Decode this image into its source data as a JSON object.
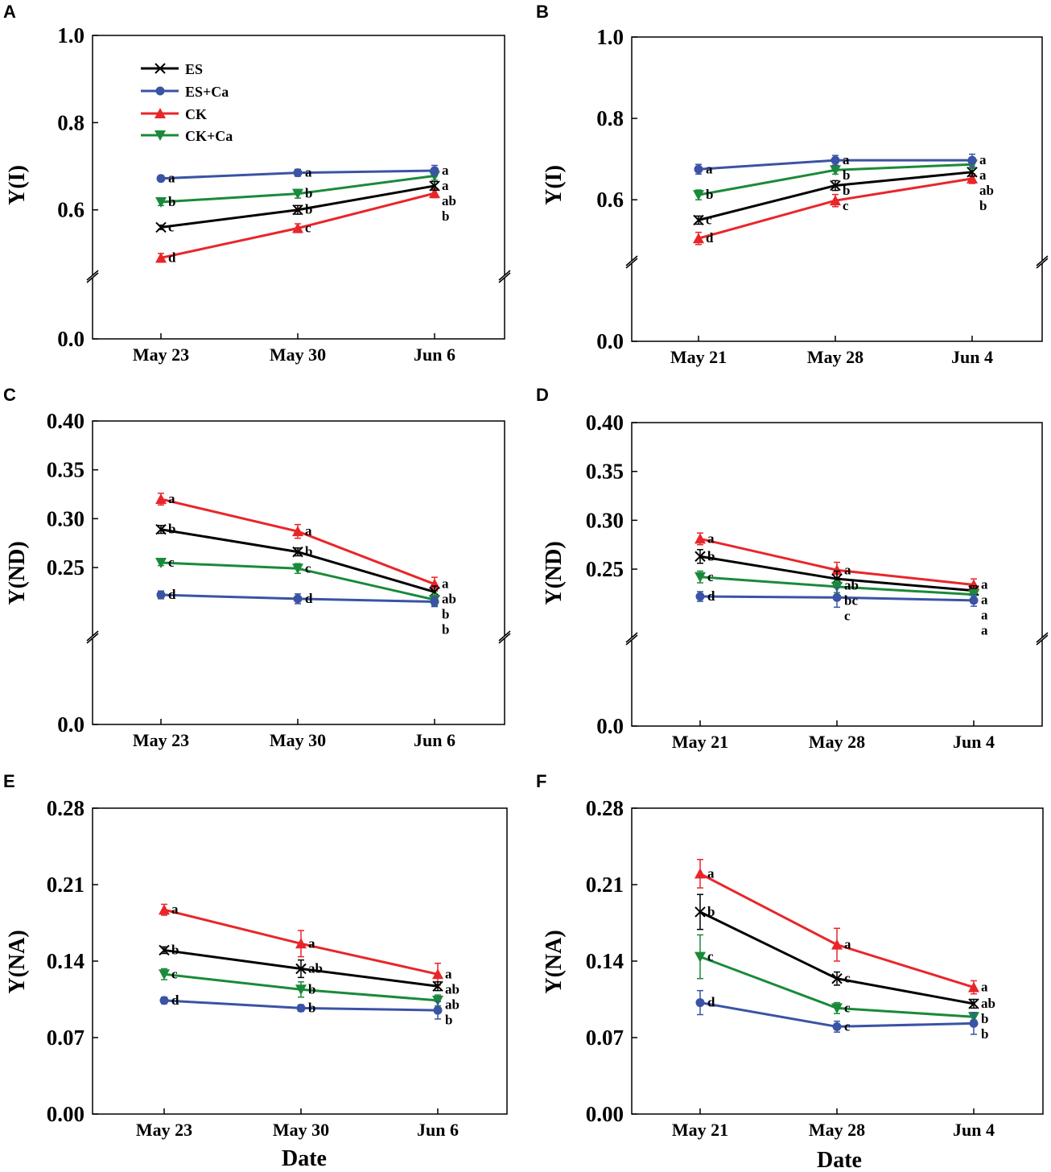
{
  "figure": {
    "xlabel": "Date",
    "legend": {
      "entries": [
        {
          "name": "ES",
          "color": "#000000",
          "marker": "x"
        },
        {
          "name": "ES+Ca",
          "color": "#3a53a4",
          "marker": "circle"
        },
        {
          "name": "CK",
          "color": "#e8262a",
          "marker": "triangle-up"
        },
        {
          "name": "CK+Ca",
          "color": "#1a8a3a",
          "marker": "triangle-down"
        }
      ]
    }
  },
  "chart_data": [
    {
      "panel": "A",
      "type": "line",
      "ylabel": "Y(I)",
      "categories": [
        "May 23",
        "May 30",
        "Jun 6"
      ],
      "ylim": [
        0,
        1.0
      ],
      "axis_break": [
        0.05,
        0.45
      ],
      "yticks": [
        0.0,
        0.6,
        0.8,
        1.0
      ],
      "ytick_labels": [
        "0.0",
        "0.6",
        "0.8",
        "1.0"
      ],
      "series": [
        {
          "name": "ES",
          "values": [
            0.56,
            0.6,
            0.655
          ],
          "errors": [
            0.005,
            0.01,
            0.01
          ],
          "letters": [
            "c",
            "b",
            "ab"
          ]
        },
        {
          "name": "ES+Ca",
          "values": [
            0.672,
            0.685,
            0.69
          ],
          "errors": [
            0.006,
            0.008,
            0.012
          ],
          "letters": [
            "a",
            "a",
            "a"
          ]
        },
        {
          "name": "CK",
          "values": [
            0.49,
            0.558,
            0.638
          ],
          "errors": [
            0.01,
            0.01,
            0.01
          ],
          "letters": [
            "d",
            "c",
            "b"
          ]
        },
        {
          "name": "CK+Ca",
          "values": [
            0.618,
            0.637,
            0.678
          ],
          "errors": [
            0.008,
            0.01,
            0.01
          ],
          "letters": [
            "b",
            "b",
            "a"
          ]
        }
      ]
    },
    {
      "panel": "B",
      "type": "line",
      "ylabel": "Y(I)",
      "categories": [
        "May 21",
        "May 28",
        "Jun 4"
      ],
      "ylim": [
        0,
        1.0
      ],
      "axis_break": [
        0.05,
        0.45
      ],
      "yticks": [
        0.0,
        0.6,
        0.8,
        1.0
      ],
      "ytick_labels": [
        "0.0",
        "0.6",
        "0.8",
        "1.0"
      ],
      "series": [
        {
          "name": "ES",
          "values": [
            0.55,
            0.635,
            0.668
          ],
          "errors": [
            0.01,
            0.012,
            0.01
          ],
          "letters": [
            "c",
            "b",
            "ab"
          ]
        },
        {
          "name": "ES+Ca",
          "values": [
            0.675,
            0.697,
            0.697
          ],
          "errors": [
            0.012,
            0.012,
            0.015
          ],
          "letters": [
            "a",
            "a",
            "a"
          ]
        },
        {
          "name": "CK",
          "values": [
            0.505,
            0.598,
            0.652
          ],
          "errors": [
            0.015,
            0.015,
            0.012
          ],
          "letters": [
            "d",
            "c",
            "b"
          ]
        },
        {
          "name": "CK+Ca",
          "values": [
            0.612,
            0.673,
            0.687
          ],
          "errors": [
            0.012,
            0.01,
            0.01
          ],
          "letters": [
            "b",
            "b",
            "a"
          ]
        }
      ]
    },
    {
      "panel": "C",
      "type": "line",
      "ylabel": "Y(ND)",
      "categories": [
        "May 23",
        "May 30",
        "Jun 6"
      ],
      "ylim": [
        0,
        0.4
      ],
      "axis_break": [
        0.02,
        0.18
      ],
      "yticks": [
        0.0,
        0.25,
        0.3,
        0.35,
        0.4
      ],
      "ytick_labels": [
        "0.0",
        "0.25",
        "0.30",
        "0.35",
        "0.40"
      ],
      "series": [
        {
          "name": "ES",
          "values": [
            0.289,
            0.266,
            0.225
          ],
          "errors": [
            0.004,
            0.004,
            0.006
          ],
          "letters": [
            "b",
            "b",
            "ab"
          ]
        },
        {
          "name": "ES+Ca",
          "values": [
            0.222,
            0.218,
            0.215
          ],
          "errors": [
            0.004,
            0.005,
            0.005
          ],
          "letters": [
            "d",
            "d",
            "b"
          ]
        },
        {
          "name": "CK",
          "values": [
            0.32,
            0.287,
            0.233
          ],
          "errors": [
            0.006,
            0.007,
            0.007
          ],
          "letters": [
            "a",
            "a",
            "a"
          ]
        },
        {
          "name": "CK+Ca",
          "values": [
            0.255,
            0.249,
            0.217
          ],
          "errors": [
            0.003,
            0.005,
            0.006
          ],
          "letters": [
            "c",
            "c",
            "b"
          ]
        }
      ]
    },
    {
      "panel": "D",
      "type": "line",
      "ylabel": "Y(ND)",
      "categories": [
        "May 21",
        "May 28",
        "Jun 4"
      ],
      "ylim": [
        0,
        0.4
      ],
      "axis_break": [
        0.02,
        0.18
      ],
      "yticks": [
        0.0,
        0.25,
        0.3,
        0.35,
        0.4
      ],
      "ytick_labels": [
        "0.0",
        "0.25",
        "0.30",
        "0.35",
        "0.40"
      ],
      "series": [
        {
          "name": "ES",
          "values": [
            0.263,
            0.24,
            0.228
          ],
          "errors": [
            0.007,
            0.008,
            0.005
          ],
          "letters": [
            "b",
            "ab",
            "a"
          ]
        },
        {
          "name": "ES+Ca",
          "values": [
            0.222,
            0.221,
            0.218
          ],
          "errors": [
            0.005,
            0.01,
            0.006
          ],
          "letters": [
            "d",
            "c",
            "a"
          ]
        },
        {
          "name": "CK",
          "values": [
            0.281,
            0.249,
            0.234
          ],
          "errors": [
            0.006,
            0.008,
            0.006
          ],
          "letters": [
            "a",
            "a",
            "a"
          ]
        },
        {
          "name": "CK+Ca",
          "values": [
            0.242,
            0.232,
            0.224
          ],
          "errors": [
            0.006,
            0.006,
            0.005
          ],
          "letters": [
            "c",
            "bc",
            "a"
          ]
        }
      ]
    },
    {
      "panel": "E",
      "type": "line",
      "ylabel": "Y(NA)",
      "categories": [
        "May 23",
        "May 30",
        "Jun 6"
      ],
      "ylim": [
        0,
        0.28
      ],
      "axis_break": null,
      "yticks": [
        0.0,
        0.07,
        0.14,
        0.21,
        0.28
      ],
      "ytick_labels": [
        "0.00",
        "0.07",
        "0.14",
        "0.21",
        "0.28"
      ],
      "series": [
        {
          "name": "ES",
          "values": [
            0.15,
            0.133,
            0.117
          ],
          "errors": [
            0.003,
            0.008,
            0.004
          ],
          "letters": [
            "b",
            "ab",
            "ab"
          ]
        },
        {
          "name": "ES+Ca",
          "values": [
            0.104,
            0.097,
            0.095
          ],
          "errors": [
            0.003,
            0.003,
            0.008
          ],
          "letters": [
            "d",
            "b",
            "b"
          ]
        },
        {
          "name": "CK",
          "values": [
            0.187,
            0.156,
            0.128
          ],
          "errors": [
            0.005,
            0.012,
            0.01
          ],
          "letters": [
            "a",
            "a",
            "a"
          ]
        },
        {
          "name": "CK+Ca",
          "values": [
            0.128,
            0.114,
            0.104
          ],
          "errors": [
            0.005,
            0.007,
            0.005
          ],
          "letters": [
            "c",
            "b",
            "ab"
          ]
        }
      ]
    },
    {
      "panel": "F",
      "type": "line",
      "ylabel": "Y(NA)",
      "categories": [
        "May 21",
        "May 28",
        "Jun 4"
      ],
      "ylim": [
        0,
        0.28
      ],
      "axis_break": null,
      "yticks": [
        0.0,
        0.07,
        0.14,
        0.21,
        0.28
      ],
      "ytick_labels": [
        "0.00",
        "0.07",
        "0.14",
        "0.21",
        "0.28"
      ],
      "series": [
        {
          "name": "ES",
          "values": [
            0.185,
            0.124,
            0.101
          ],
          "errors": [
            0.016,
            0.006,
            0.004
          ],
          "letters": [
            "b",
            "c",
            "ab"
          ]
        },
        {
          "name": "ES+Ca",
          "values": [
            0.102,
            0.08,
            0.083
          ],
          "errors": [
            0.011,
            0.005,
            0.01
          ],
          "letters": [
            "d",
            "c",
            "b"
          ]
        },
        {
          "name": "CK",
          "values": [
            0.22,
            0.155,
            0.116
          ],
          "errors": [
            0.013,
            0.015,
            0.006
          ],
          "letters": [
            "a",
            "a",
            "a"
          ]
        },
        {
          "name": "CK+Ca",
          "values": [
            0.144,
            0.097,
            0.089
          ],
          "errors": [
            0.02,
            0.005,
            0.003
          ],
          "letters": [
            "c",
            "c",
            "b"
          ]
        }
      ]
    }
  ]
}
